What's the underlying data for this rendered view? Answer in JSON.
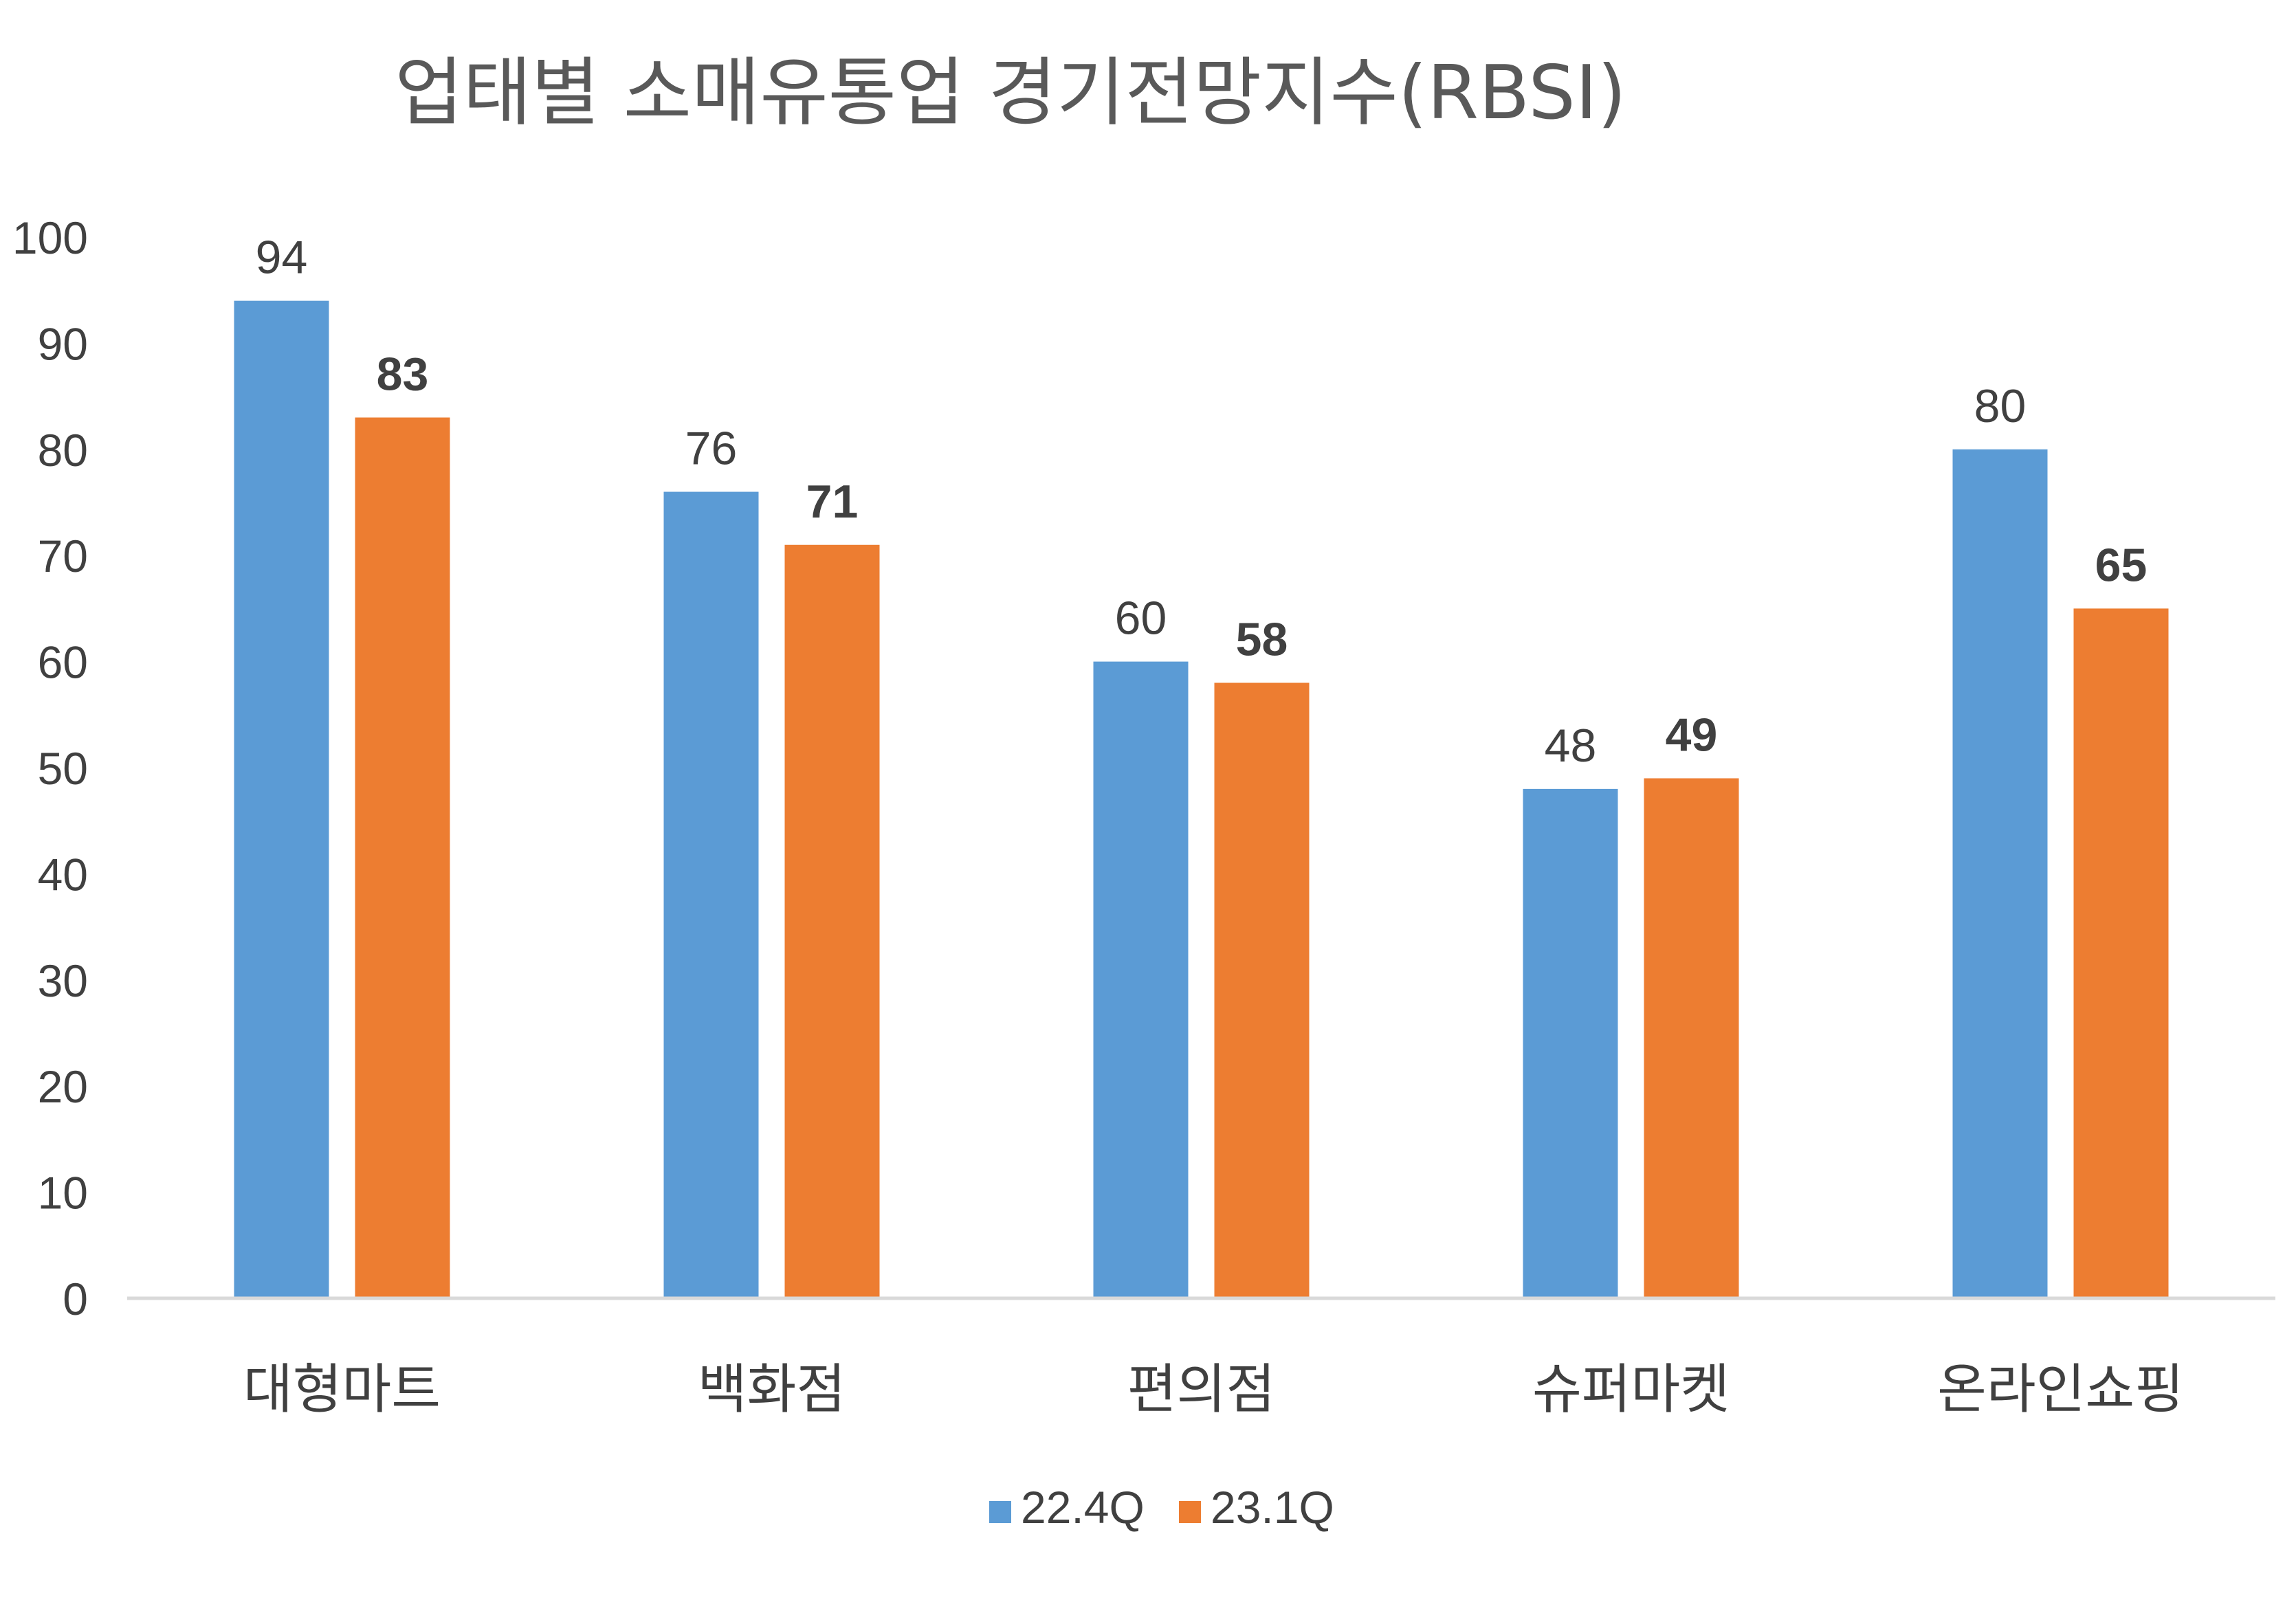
{
  "chart_data": {
    "type": "bar",
    "title": "업태별 소매유통업 경기전망지수(RBSI)",
    "xlabel": "",
    "ylabel": "",
    "ylim": [
      0,
      100
    ],
    "ytick_step": 10,
    "yticks": [
      "0",
      "10",
      "20",
      "30",
      "40",
      "50",
      "60",
      "70",
      "80",
      "90",
      "100"
    ],
    "grid": false,
    "legend_position": "bottom",
    "categories": [
      "대형마트",
      "백화점",
      "편의점",
      "슈퍼마켓",
      "온라인쇼핑"
    ],
    "series": [
      {
        "name": "22.4Q",
        "color": "#5B9BD5",
        "label_bold": false,
        "values": [
          94,
          76,
          60,
          48,
          80
        ]
      },
      {
        "name": "23.1Q",
        "color": "#ED7D31",
        "label_bold": true,
        "values": [
          83,
          71,
          58,
          49,
          65
        ]
      }
    ],
    "axis_color": "#D9D9D9"
  }
}
